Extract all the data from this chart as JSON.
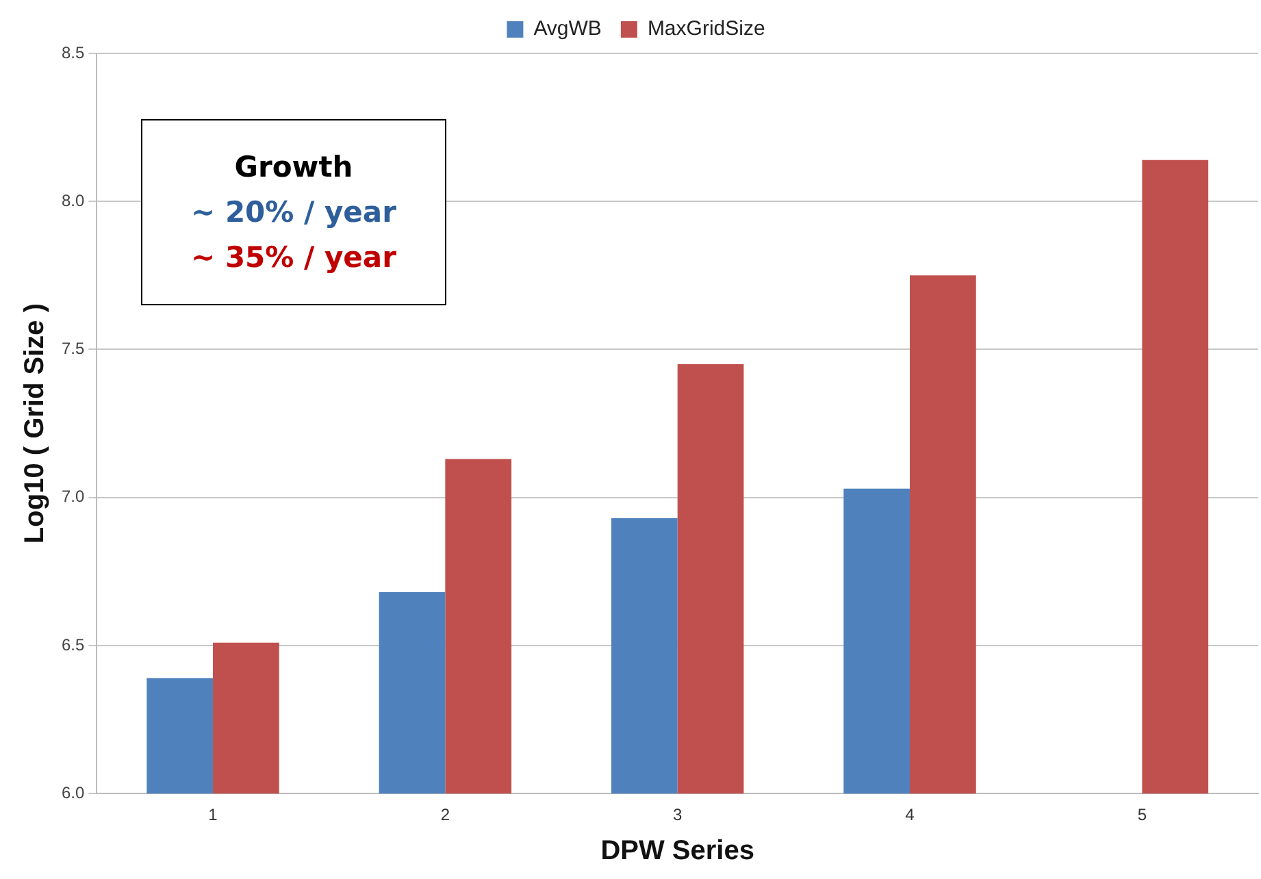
{
  "chart_data": {
    "type": "bar",
    "xlabel": "DPW Series",
    "ylabel": "Log10 ( Grid Size )",
    "categories": [
      "1",
      "2",
      "3",
      "4",
      "5"
    ],
    "series": [
      {
        "name": "AvgWB",
        "color": "#4f81bd",
        "values": [
          6.39,
          6.68,
          6.93,
          7.03,
          null
        ]
      },
      {
        "name": "MaxGridSize",
        "color": "#c0504d",
        "values": [
          6.51,
          7.13,
          7.45,
          7.75,
          8.14
        ]
      }
    ],
    "ylim": [
      6.0,
      8.5
    ],
    "yticks": [
      {
        "value": 6,
        "label": "6.0"
      },
      {
        "value": 6.5,
        "label": "6.5"
      },
      {
        "value": 7,
        "label": "7.0"
      },
      {
        "value": 7.5,
        "label": "7.5"
      },
      {
        "value": 8,
        "label": "8.0"
      },
      {
        "value": 8.5,
        "label": "8.5"
      }
    ],
    "grid": "y",
    "legend": "top",
    "annotations": [
      "Growth",
      "~ 20% / year",
      "~ 35% / year"
    ]
  }
}
